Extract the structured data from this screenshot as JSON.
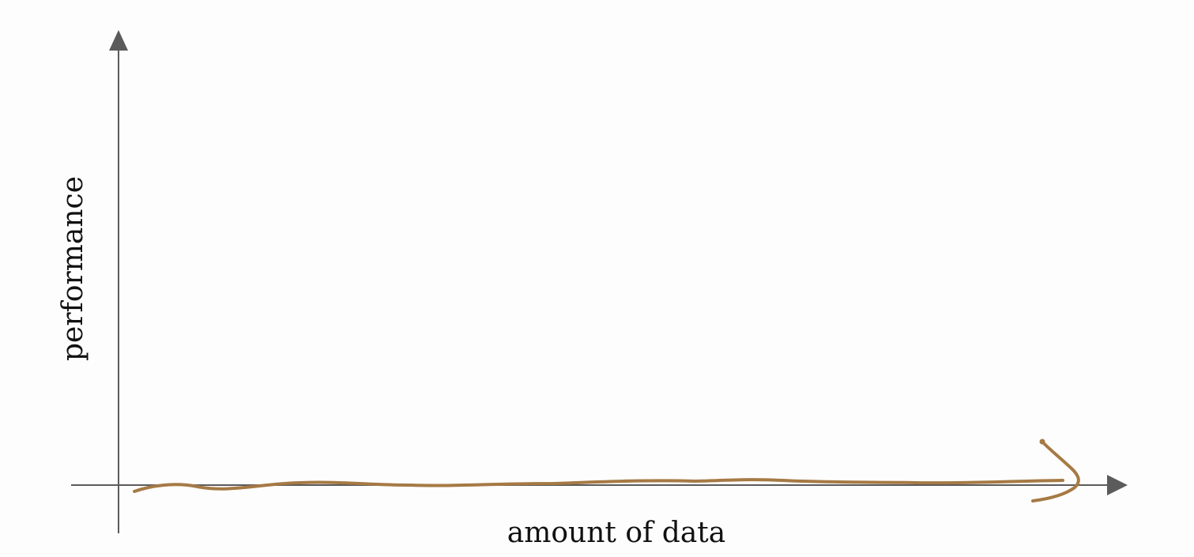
{
  "diagram": {
    "labels": {
      "x_axis": "amount of data",
      "y_axis": "performance"
    },
    "colors": {
      "background": "#fdfdfd",
      "axis": "#5b5b5b",
      "handdrawn_curve": "#a67a45"
    },
    "curve": {
      "description": "hand-drawn flat line near zero performance across amount of data, ending in an arrowhead"
    }
  }
}
